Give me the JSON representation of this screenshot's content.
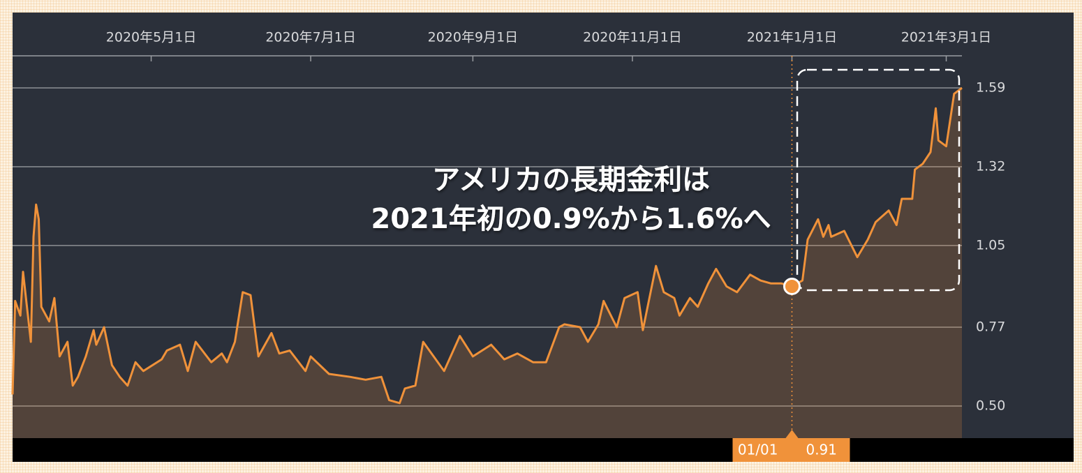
{
  "chart_data": {
    "type": "area",
    "color": "#f0923a",
    "x": [
      "2020-03-09",
      "2020-03-10",
      "2020-03-12",
      "2020-03-13",
      "2020-03-16",
      "2020-03-17",
      "2020-03-18",
      "2020-03-19",
      "2020-03-20",
      "2020-03-23",
      "2020-03-25",
      "2020-03-27",
      "2020-03-30",
      "2020-04-01",
      "2020-04-03",
      "2020-04-06",
      "2020-04-09",
      "2020-04-10",
      "2020-04-13",
      "2020-04-16",
      "2020-04-19",
      "2020-04-22",
      "2020-04-25",
      "2020-04-28",
      "2020-05-05",
      "2020-05-07",
      "2020-05-12",
      "2020-05-15",
      "2020-05-18",
      "2020-05-24",
      "2020-05-28",
      "2020-05-30",
      "2020-06-02",
      "2020-06-05",
      "2020-06-08",
      "2020-06-11",
      "2020-06-16",
      "2020-06-19",
      "2020-06-23",
      "2020-06-29",
      "2020-07-01",
      "2020-07-08",
      "2020-07-16",
      "2020-07-22",
      "2020-07-28",
      "2020-07-31",
      "2020-08-04",
      "2020-08-06",
      "2020-08-10",
      "2020-08-13",
      "2020-08-17",
      "2020-08-21",
      "2020-08-27",
      "2020-09-01",
      "2020-09-08",
      "2020-09-13",
      "2020-09-18",
      "2020-09-24",
      "2020-09-29",
      "2020-10-04",
      "2020-10-06",
      "2020-10-12",
      "2020-10-15",
      "2020-10-19",
      "2020-10-21",
      "2020-10-26",
      "2020-10-29",
      "2020-11-03",
      "2020-11-05",
      "2020-11-10",
      "2020-11-13",
      "2020-11-17",
      "2020-11-19",
      "2020-11-23",
      "2020-11-26",
      "2020-11-30",
      "2020-12-03",
      "2020-12-07",
      "2020-12-11",
      "2020-12-16",
      "2020-12-20",
      "2020-12-24",
      "2020-12-28",
      "2021-01-01",
      "2021-01-05",
      "2021-01-07",
      "2021-01-11",
      "2021-01-13",
      "2021-01-15",
      "2021-01-16",
      "2021-01-21",
      "2021-01-26",
      "2021-01-30",
      "2021-02-02",
      "2021-02-07",
      "2021-02-10",
      "2021-02-12",
      "2021-02-16",
      "2021-02-17",
      "2021-02-20",
      "2021-02-23",
      "2021-02-25",
      "2021-02-26",
      "2021-03-01",
      "2021-03-04",
      "2021-03-07"
    ],
    "values": [
      0.54,
      0.86,
      0.81,
      0.96,
      0.72,
      1.08,
      1.19,
      1.14,
      0.84,
      0.79,
      0.87,
      0.67,
      0.72,
      0.57,
      0.6,
      0.67,
      0.76,
      0.71,
      0.77,
      0.64,
      0.6,
      0.57,
      0.65,
      0.62,
      0.66,
      0.69,
      0.71,
      0.62,
      0.72,
      0.65,
      0.68,
      0.65,
      0.72,
      0.89,
      0.88,
      0.67,
      0.75,
      0.68,
      0.69,
      0.62,
      0.67,
      0.61,
      0.6,
      0.59,
      0.6,
      0.52,
      0.51,
      0.56,
      0.57,
      0.72,
      0.67,
      0.62,
      0.74,
      0.67,
      0.71,
      0.66,
      0.68,
      0.65,
      0.65,
      0.77,
      0.78,
      0.77,
      0.72,
      0.78,
      0.86,
      0.77,
      0.87,
      0.89,
      0.76,
      0.98,
      0.89,
      0.87,
      0.81,
      0.87,
      0.84,
      0.92,
      0.97,
      0.91,
      0.89,
      0.95,
      0.93,
      0.92,
      0.92,
      0.91,
      0.93,
      1.07,
      1.14,
      1.08,
      1.12,
      1.08,
      1.1,
      1.01,
      1.07,
      1.13,
      1.17,
      1.12,
      1.21,
      1.21,
      1.31,
      1.33,
      1.37,
      1.52,
      1.41,
      1.39,
      1.57,
      1.59
    ],
    "xlim": [
      "2020-03-09",
      "2021-03-07"
    ],
    "xticks": [
      {
        "value": "2020-05-01",
        "label": "2020年5月1日"
      },
      {
        "value": "2020-07-01",
        "label": "2020年7月1日"
      },
      {
        "value": "2020-09-01",
        "label": "2020年9月1日"
      },
      {
        "value": "2020-11-01",
        "label": "2020年11月1日"
      },
      {
        "value": "2021-01-01",
        "label": "2021年1月1日"
      },
      {
        "value": "2021-03-01",
        "label": "2021年3月1日"
      }
    ],
    "ylim": [
      0.39,
      1.7
    ],
    "yticks": [
      {
        "value": 0.5,
        "label": "0.50"
      },
      0.77,
      1.05,
      1.32,
      1.59
    ],
    "grid": true,
    "annotation": [
      "アメリカの長期金利は",
      "2021年初の0.9%から1.6%へ"
    ],
    "crosshair": {
      "x": "2021-01-01",
      "label": "01/01",
      "value": 0.91
    }
  }
}
